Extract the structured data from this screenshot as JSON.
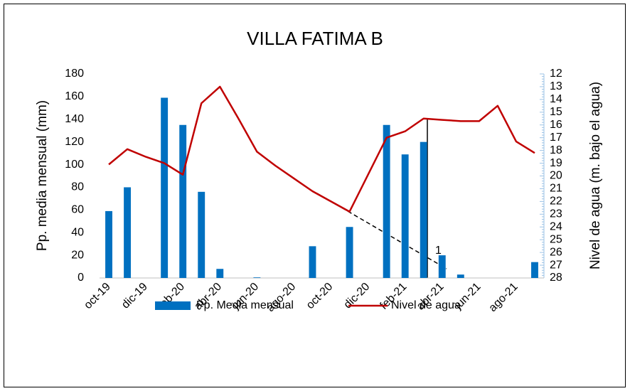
{
  "chart_data": {
    "type": "bar_line",
    "title": "VILLA FATIMA B",
    "y_label": "Pp. media mensual (mm)",
    "y2_label": "Nivel de agua (m. bajo el agua)",
    "categories": [
      "oct-19",
      null,
      "dic-19",
      null,
      "feb-20",
      null,
      "abr-20",
      null,
      "jun-20",
      null,
      "ago-20",
      null,
      "oct-20",
      null,
      "dic-20",
      null,
      "feb-21",
      null,
      "abr-21",
      null,
      "jun-21",
      null,
      "ago-21",
      null
    ],
    "series": [
      {
        "name": "Pp. Media mensual",
        "color": "#0070c0",
        "kind": "bar",
        "values": [
          59,
          80,
          0,
          159,
          135,
          76,
          8,
          0,
          0.5,
          0,
          0,
          28,
          0,
          45,
          0,
          135,
          109,
          120,
          20,
          3,
          0,
          0,
          0,
          14
        ]
      },
      {
        "name": "Nivel de agua",
        "color": "#c00000",
        "kind": "line",
        "axis": "y2",
        "values": [
          19.1,
          17.9,
          18.5,
          19.0,
          19.9,
          14.3,
          13.0,
          15.5,
          18.1,
          19.2,
          20.2,
          21.2,
          22.0,
          22.8,
          19.9,
          17.0,
          16.5,
          15.5,
          15.6,
          15.7,
          15.7,
          14.5,
          17.3,
          18.2
        ]
      }
    ],
    "annotations": [
      "1"
    ],
    "ylim": [
      0,
      180
    ],
    "yticks": [
      0,
      20,
      40,
      60,
      80,
      100,
      120,
      140,
      160,
      180
    ],
    "y2lim": [
      12,
      28
    ],
    "y2_reversed": true,
    "y2ticks": [
      12,
      13,
      14,
      15,
      16,
      17,
      18,
      19,
      20,
      21,
      22,
      23,
      24,
      25,
      26,
      27,
      28
    ],
    "legend": "bottom"
  }
}
